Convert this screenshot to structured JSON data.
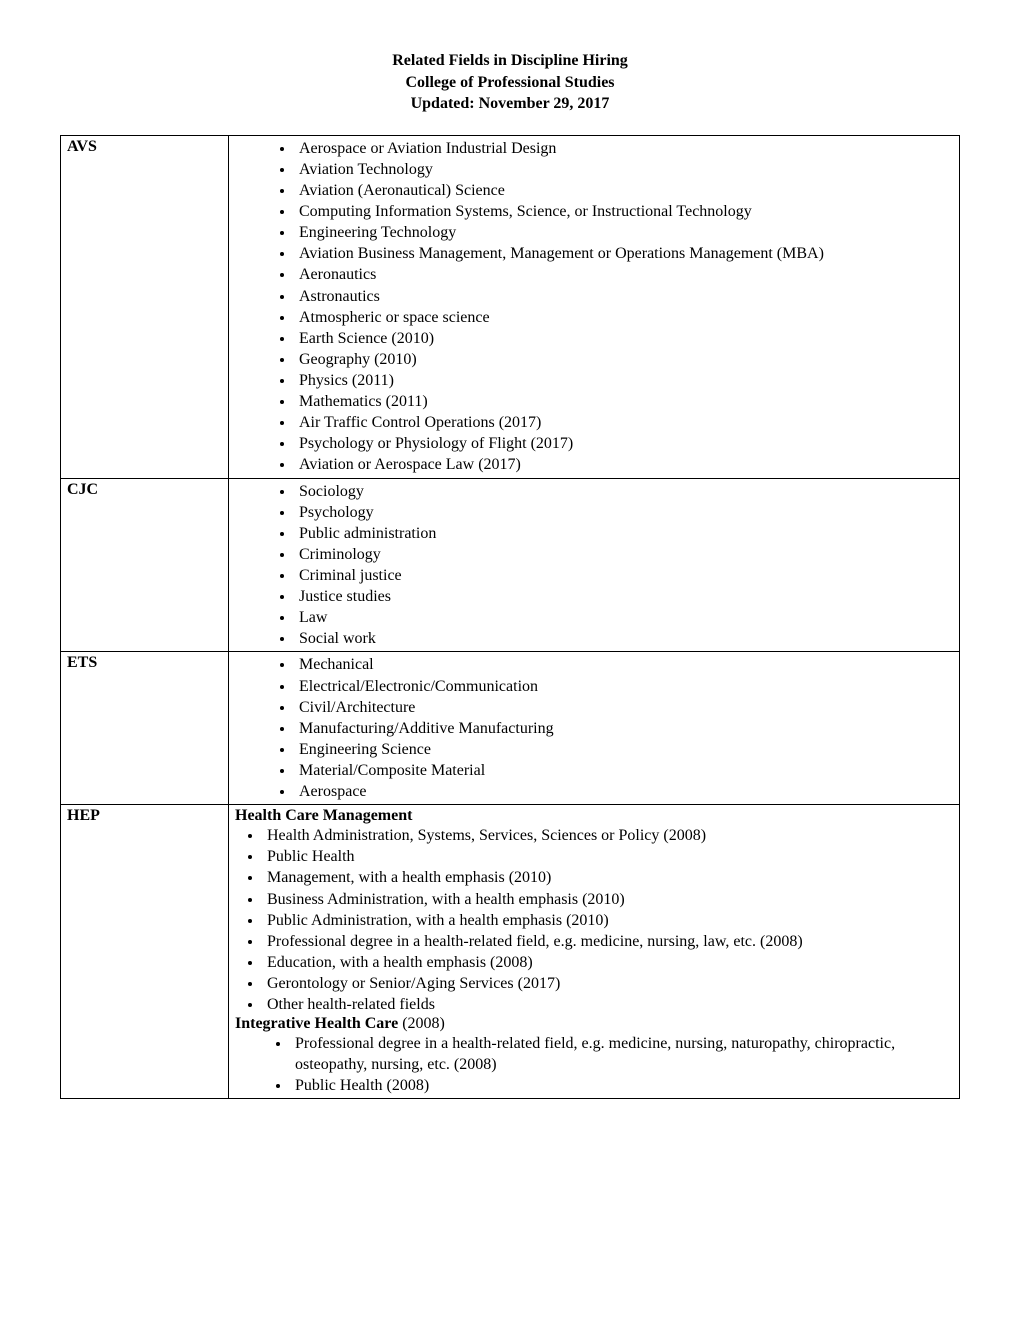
{
  "header": {
    "line1": "Related Fields in Discipline Hiring",
    "line2": "College of Professional Studies",
    "line3": "Updated: November 29, 2017"
  },
  "rows": [
    {
      "code": "AVS",
      "sections": [
        {
          "heading": null,
          "listClass": "bullets",
          "items": [
            "Aerospace or Aviation Industrial Design",
            "Aviation Technology",
            "Aviation (Aeronautical) Science",
            "Computing Information Systems, Science, or Instructional Technology",
            "Engineering Technology",
            "Aviation Business Management, Management or Operations Management (MBA)",
            "Aeronautics",
            "Astronautics",
            "Atmospheric or space science",
            "Earth Science (2010)",
            "Geography (2010)",
            "Physics (2011)",
            "Mathematics (2011)",
            "Air Traffic Control Operations (2017)",
            "Psychology or Physiology of Flight (2017)",
            "Aviation or Aerospace Law (2017)"
          ]
        }
      ]
    },
    {
      "code": "CJC",
      "sections": [
        {
          "heading": null,
          "listClass": "bullets",
          "items": [
            "Sociology",
            "Psychology",
            "Public administration",
            "Criminology",
            "Criminal justice",
            "Justice studies",
            "Law",
            "Social work"
          ]
        }
      ]
    },
    {
      "code": "ETS",
      "sections": [
        {
          "heading": null,
          "listClass": "bullets",
          "items": [
            "Mechanical",
            "Electrical/Electronic/Communication",
            "Civil/Architecture",
            "Manufacturing/Additive Manufacturing",
            "Engineering Science",
            "Material/Composite Material",
            "Aerospace"
          ]
        }
      ]
    },
    {
      "code": "HEP",
      "sections": [
        {
          "heading": "Health Care Management",
          "headingYear": "",
          "listClass": "bullets narrow",
          "items": [
            "Health Administration, Systems, Services, Sciences or Policy  (2008)",
            "Public Health",
            "Management, with a health emphasis (2010)",
            "Business Administration, with a health emphasis (2010)",
            "Public Administration, with a health emphasis (2010)",
            " Professional degree in a health-related field, e.g. medicine, nursing, law, etc. (2008)",
            "Education, with a health emphasis (2008)",
            "Gerontology or Senior/Aging Services (2017)",
            "Other health-related fields"
          ]
        },
        {
          "heading": "Integrative Health Care",
          "headingYear": " (2008)",
          "listClass": "bullets indent2",
          "items": [
            "Professional degree in a health-related field, e.g. medicine, nursing, naturopathy, chiropractic, osteopathy, nursing, etc. (2008)",
            "Public Health (2008)"
          ]
        }
      ]
    }
  ]
}
